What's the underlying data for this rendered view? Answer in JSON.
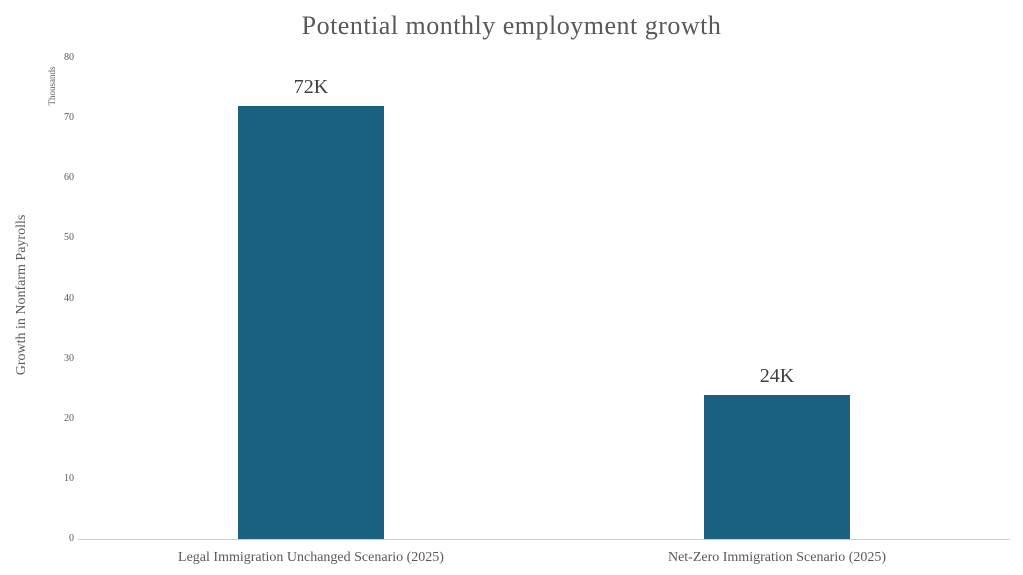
{
  "chart_data": {
    "type": "bar",
    "title": "Potential monthly employment growth",
    "categories": [
      "Legal Immigration Unchanged Scenario (2025)",
      "Net-Zero Immigration Scenario (2025)"
    ],
    "values": [
      72,
      24
    ],
    "data_labels": [
      "72K",
      "24K"
    ],
    "xlabel": "",
    "ylabel": "Growth in Nonfarm Payrolls",
    "y_units_label": "Thousands",
    "ylim": [
      0,
      80
    ],
    "yticks": [
      0,
      10,
      20,
      30,
      40,
      50,
      60,
      70,
      80
    ],
    "grid": false,
    "legend": false,
    "colors": {
      "bar": "#19617E",
      "title_text": "#595959",
      "axis_text": "#595959",
      "data_label_text": "#404040",
      "axis_line": "#cccccc",
      "background": "#ffffff"
    }
  }
}
